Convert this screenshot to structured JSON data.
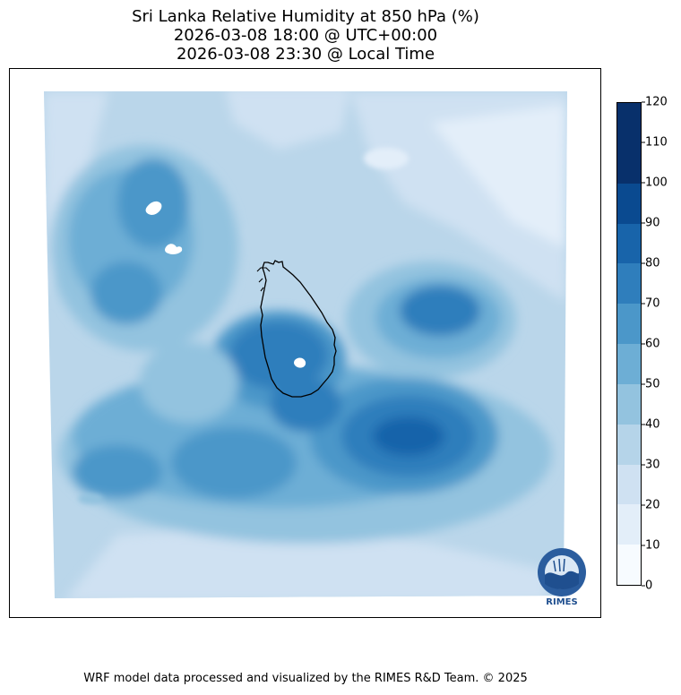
{
  "title": {
    "line1": "Sri Lanka Relative Humidity at 850 hPa (%)",
    "line2": "2026-03-08 18:00 @ UTC+00:00",
    "line3": "2026-03-08 23:30 @ Local Time"
  },
  "colorbar": {
    "ticks": [
      "0",
      "10",
      "20",
      "30",
      "40",
      "50",
      "60",
      "70",
      "80",
      "90",
      "100",
      "110",
      "120"
    ],
    "colors": [
      "#f7fbff",
      "#e3eef9",
      "#cfe1f2",
      "#b5d4e9",
      "#93c3df",
      "#6daed5",
      "#4b97c9",
      "#2f7ebc",
      "#1864aa",
      "#0a4a90",
      "#08306b",
      "#08306b"
    ]
  },
  "logo": {
    "text": "RIMES"
  },
  "footer": "WRF model data processed and visualized by the RIMES R&D Team. © 2025"
}
